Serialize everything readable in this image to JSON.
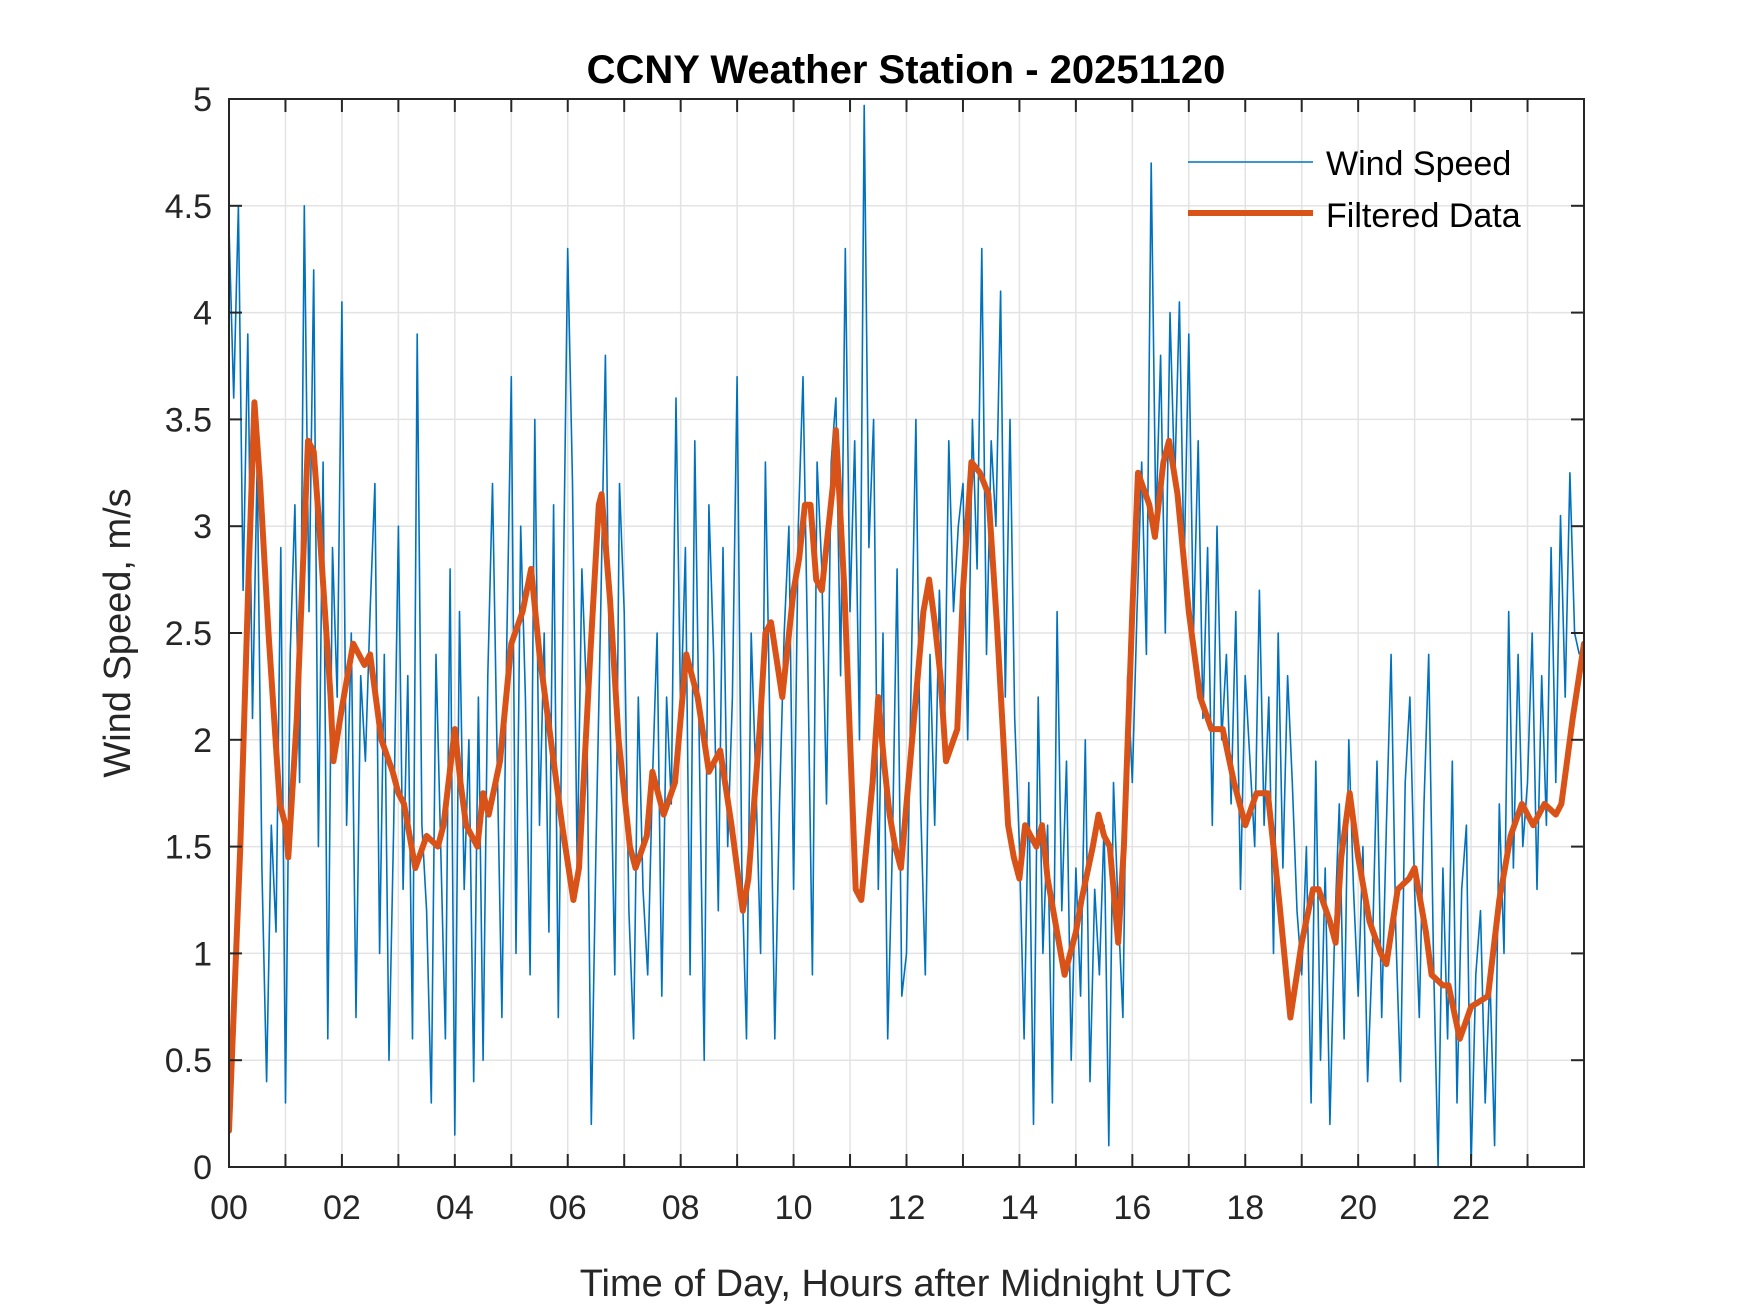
{
  "chart_data": {
    "type": "line",
    "title": "CCNY Weather Station - 20251120",
    "xlabel": "Time of Day, Hours after Midnight UTC",
    "ylabel": "Wind Speed, m/s",
    "xlim": [
      0,
      24
    ],
    "ylim": [
      0,
      5
    ],
    "grid": true,
    "legend_position": "top-right",
    "x_ticks": [
      0,
      2,
      4,
      6,
      8,
      10,
      12,
      14,
      16,
      18,
      20,
      22
    ],
    "x_tick_labels": [
      "00",
      "02",
      "04",
      "06",
      "08",
      "10",
      "12",
      "14",
      "16",
      "18",
      "20",
      "22"
    ],
    "x_minor_ticks_every_hours": 1,
    "y_ticks": [
      0,
      0.5,
      1,
      1.5,
      2,
      2.5,
      3,
      3.5,
      4,
      4.5,
      5
    ],
    "y_tick_labels": [
      "0",
      "0.5",
      "1",
      "1.5",
      "2",
      "2.5",
      "3",
      "3.5",
      "4",
      "4.5",
      "5"
    ],
    "series": [
      {
        "name": "Wind Speed",
        "color": "#0072BD",
        "style": "thin",
        "x_start_hours": 0,
        "x_step_hours": 0.0833333,
        "values": [
          4.4,
          3.6,
          4.5,
          2.7,
          3.9,
          2.1,
          3.3,
          1.4,
          0.4,
          1.6,
          1.1,
          2.9,
          0.3,
          2.4,
          3.1,
          1.8,
          4.5,
          2.6,
          4.2,
          1.5,
          3.3,
          0.6,
          2.9,
          2.2,
          4.05,
          1.6,
          2.5,
          0.7,
          2.3,
          1.9,
          2.6,
          3.2,
          1.0,
          2.4,
          0.5,
          1.6,
          3.0,
          1.3,
          2.3,
          0.6,
          3.9,
          1.6,
          1.2,
          0.3,
          2.4,
          1.5,
          0.6,
          2.8,
          0.15,
          2.6,
          1.3,
          2.0,
          0.4,
          2.2,
          0.5,
          2.3,
          3.2,
          1.9,
          0.7,
          2.4,
          3.7,
          1.0,
          3.0,
          2.2,
          0.9,
          3.5,
          1.6,
          2.5,
          1.1,
          3.1,
          0.7,
          2.6,
          4.3,
          3.2,
          1.4,
          2.8,
          2.2,
          0.2,
          1.5,
          2.6,
          3.8,
          2.1,
          0.9,
          3.2,
          2.6,
          1.2,
          0.6,
          2.2,
          1.3,
          0.9,
          1.8,
          2.5,
          0.8,
          2.2,
          1.7,
          3.6,
          2.1,
          2.9,
          0.9,
          3.4,
          1.9,
          0.5,
          3.1,
          2.4,
          1.2,
          2.9,
          1.5,
          2.2,
          3.7,
          1.4,
          0.6,
          2.5,
          1.8,
          1.0,
          3.3,
          2.0,
          0.6,
          1.7,
          2.5,
          3.0,
          1.3,
          3.0,
          3.7,
          2.4,
          0.9,
          3.3,
          2.8,
          1.7,
          3.3,
          3.6,
          2.3,
          4.3,
          2.6,
          3.4,
          2.0,
          4.97,
          2.9,
          3.5,
          1.3,
          2.5,
          0.6,
          1.5,
          2.8,
          0.8,
          1.0,
          2.3,
          3.5,
          1.7,
          0.9,
          2.4,
          1.6,
          2.7,
          1.9,
          3.4,
          2.6,
          3.0,
          3.2,
          2.0,
          3.5,
          2.8,
          4.3,
          2.4,
          3.4,
          3.0,
          4.1,
          2.2,
          3.5,
          2.1,
          1.5,
          0.6,
          1.8,
          0.2,
          2.2,
          1.0,
          1.6,
          0.3,
          2.6,
          1.2,
          1.9,
          0.5,
          1.4,
          0.8,
          2.0,
          0.4,
          1.3,
          0.9,
          1.6,
          0.1,
          1.8,
          1.2,
          0.7,
          2.3,
          1.8,
          2.6,
          3.3,
          2.4,
          4.7,
          3.0,
          3.8,
          2.5,
          4.0,
          3.2,
          4.05,
          2.8,
          3.9,
          2.5,
          3.4,
          2.1,
          2.9,
          1.6,
          3.0,
          2.0,
          2.4,
          1.7,
          2.6,
          1.3,
          2.3,
          1.9,
          1.5,
          2.7,
          1.6,
          2.2,
          1.0,
          2.5,
          1.4,
          2.3,
          1.8,
          1.2,
          0.9,
          1.5,
          0.3,
          1.9,
          0.5,
          1.4,
          0.2,
          1.1,
          1.7,
          0.6,
          2.0,
          1.3,
          0.8,
          1.5,
          0.4,
          1.0,
          1.9,
          0.7,
          1.6,
          2.4,
          1.1,
          0.4,
          1.8,
          2.2,
          1.3,
          0.7,
          1.7,
          2.4,
          1.0,
          0.0,
          1.4,
          0.6,
          1.9,
          0.3,
          1.3,
          1.6,
          0.0,
          0.9,
          1.2,
          0.3,
          0.9,
          0.1,
          1.7,
          1.0,
          2.6,
          1.4,
          2.4,
          1.5,
          1.8,
          2.5,
          1.3,
          2.3,
          1.6,
          2.9,
          1.8,
          3.05,
          2.2,
          3.25,
          2.5,
          2.4
        ]
      },
      {
        "name": "Filtered Data",
        "color": "#D95319",
        "style": "thick",
        "points": [
          [
            0.0,
            0.17
          ],
          [
            0.2,
            1.5
          ],
          [
            0.35,
            2.8
          ],
          [
            0.45,
            3.58
          ],
          [
            0.55,
            3.2
          ],
          [
            0.7,
            2.5
          ],
          [
            0.9,
            1.7
          ],
          [
            1.0,
            1.6
          ],
          [
            1.05,
            1.45
          ],
          [
            1.2,
            2.1
          ],
          [
            1.4,
            3.4
          ],
          [
            1.5,
            3.35
          ],
          [
            1.6,
            3.0
          ],
          [
            1.8,
            2.2
          ],
          [
            1.85,
            1.9
          ],
          [
            2.0,
            2.15
          ],
          [
            2.2,
            2.45
          ],
          [
            2.4,
            2.35
          ],
          [
            2.5,
            2.4
          ],
          [
            2.7,
            2.0
          ],
          [
            2.9,
            1.85
          ],
          [
            3.0,
            1.75
          ],
          [
            3.1,
            1.7
          ],
          [
            3.3,
            1.4
          ],
          [
            3.5,
            1.55
          ],
          [
            3.7,
            1.5
          ],
          [
            3.8,
            1.6
          ],
          [
            4.0,
            2.05
          ],
          [
            4.1,
            1.8
          ],
          [
            4.2,
            1.6
          ],
          [
            4.4,
            1.5
          ],
          [
            4.5,
            1.75
          ],
          [
            4.6,
            1.65
          ],
          [
            4.8,
            1.9
          ],
          [
            5.0,
            2.45
          ],
          [
            5.2,
            2.6
          ],
          [
            5.35,
            2.8
          ],
          [
            5.5,
            2.4
          ],
          [
            5.7,
            2.0
          ],
          [
            5.9,
            1.6
          ],
          [
            6.1,
            1.25
          ],
          [
            6.2,
            1.4
          ],
          [
            6.4,
            2.4
          ],
          [
            6.55,
            3.1
          ],
          [
            6.6,
            3.15
          ],
          [
            6.75,
            2.65
          ],
          [
            6.9,
            2.0
          ],
          [
            7.1,
            1.5
          ],
          [
            7.2,
            1.4
          ],
          [
            7.4,
            1.55
          ],
          [
            7.5,
            1.85
          ],
          [
            7.7,
            1.65
          ],
          [
            7.9,
            1.8
          ],
          [
            8.1,
            2.4
          ],
          [
            8.3,
            2.2
          ],
          [
            8.5,
            1.85
          ],
          [
            8.7,
            1.95
          ],
          [
            8.9,
            1.6
          ],
          [
            9.0,
            1.4
          ],
          [
            9.1,
            1.2
          ],
          [
            9.2,
            1.35
          ],
          [
            9.4,
            2.05
          ],
          [
            9.5,
            2.5
          ],
          [
            9.6,
            2.55
          ],
          [
            9.8,
            2.2
          ],
          [
            10.0,
            2.7
          ],
          [
            10.1,
            2.85
          ],
          [
            10.2,
            3.1
          ],
          [
            10.3,
            3.1
          ],
          [
            10.4,
            2.75
          ],
          [
            10.5,
            2.7
          ],
          [
            10.7,
            3.2
          ],
          [
            10.75,
            3.45
          ],
          [
            10.9,
            2.7
          ],
          [
            11.1,
            1.3
          ],
          [
            11.2,
            1.25
          ],
          [
            11.4,
            1.8
          ],
          [
            11.5,
            2.2
          ],
          [
            11.6,
            1.9
          ],
          [
            11.7,
            1.65
          ],
          [
            11.8,
            1.5
          ],
          [
            11.9,
            1.4
          ],
          [
            12.0,
            1.7
          ],
          [
            12.2,
            2.3
          ],
          [
            12.3,
            2.6
          ],
          [
            12.4,
            2.75
          ],
          [
            12.5,
            2.55
          ],
          [
            12.6,
            2.3
          ],
          [
            12.7,
            1.9
          ],
          [
            12.9,
            2.05
          ],
          [
            13.0,
            2.7
          ],
          [
            13.15,
            3.3
          ],
          [
            13.3,
            3.25
          ],
          [
            13.45,
            3.15
          ],
          [
            13.6,
            2.55
          ],
          [
            13.8,
            1.6
          ],
          [
            13.9,
            1.45
          ],
          [
            14.0,
            1.35
          ],
          [
            14.1,
            1.6
          ],
          [
            14.2,
            1.55
          ],
          [
            14.3,
            1.5
          ],
          [
            14.4,
            1.6
          ],
          [
            14.5,
            1.35
          ],
          [
            14.7,
            1.05
          ],
          [
            14.8,
            0.9
          ],
          [
            15.0,
            1.1
          ],
          [
            15.1,
            1.25
          ],
          [
            15.3,
            1.5
          ],
          [
            15.4,
            1.65
          ],
          [
            15.5,
            1.55
          ],
          [
            15.6,
            1.5
          ],
          [
            15.75,
            1.05
          ],
          [
            15.85,
            1.5
          ],
          [
            16.0,
            2.6
          ],
          [
            16.1,
            3.25
          ],
          [
            16.3,
            3.1
          ],
          [
            16.4,
            2.95
          ],
          [
            16.55,
            3.3
          ],
          [
            16.65,
            3.4
          ],
          [
            16.8,
            3.15
          ],
          [
            17.0,
            2.6
          ],
          [
            17.2,
            2.2
          ],
          [
            17.4,
            2.05
          ],
          [
            17.6,
            2.05
          ],
          [
            17.8,
            1.8
          ],
          [
            18.0,
            1.6
          ],
          [
            18.2,
            1.75
          ],
          [
            18.4,
            1.75
          ],
          [
            18.6,
            1.25
          ],
          [
            18.8,
            0.7
          ],
          [
            19.0,
            1.05
          ],
          [
            19.2,
            1.3
          ],
          [
            19.3,
            1.3
          ],
          [
            19.5,
            1.15
          ],
          [
            19.6,
            1.05
          ],
          [
            19.7,
            1.45
          ],
          [
            19.85,
            1.75
          ],
          [
            20.0,
            1.45
          ],
          [
            20.2,
            1.15
          ],
          [
            20.4,
            1.0
          ],
          [
            20.5,
            0.95
          ],
          [
            20.7,
            1.3
          ],
          [
            20.9,
            1.35
          ],
          [
            21.0,
            1.4
          ],
          [
            21.2,
            1.1
          ],
          [
            21.3,
            0.9
          ],
          [
            21.5,
            0.85
          ],
          [
            21.6,
            0.85
          ],
          [
            21.8,
            0.6
          ],
          [
            22.0,
            0.75
          ],
          [
            22.3,
            0.8
          ],
          [
            22.5,
            1.25
          ],
          [
            22.7,
            1.55
          ],
          [
            22.9,
            1.7
          ],
          [
            23.1,
            1.6
          ],
          [
            23.3,
            1.7
          ],
          [
            23.5,
            1.65
          ],
          [
            23.6,
            1.7
          ],
          [
            23.8,
            2.1
          ],
          [
            24.0,
            2.45
          ]
        ]
      }
    ]
  }
}
